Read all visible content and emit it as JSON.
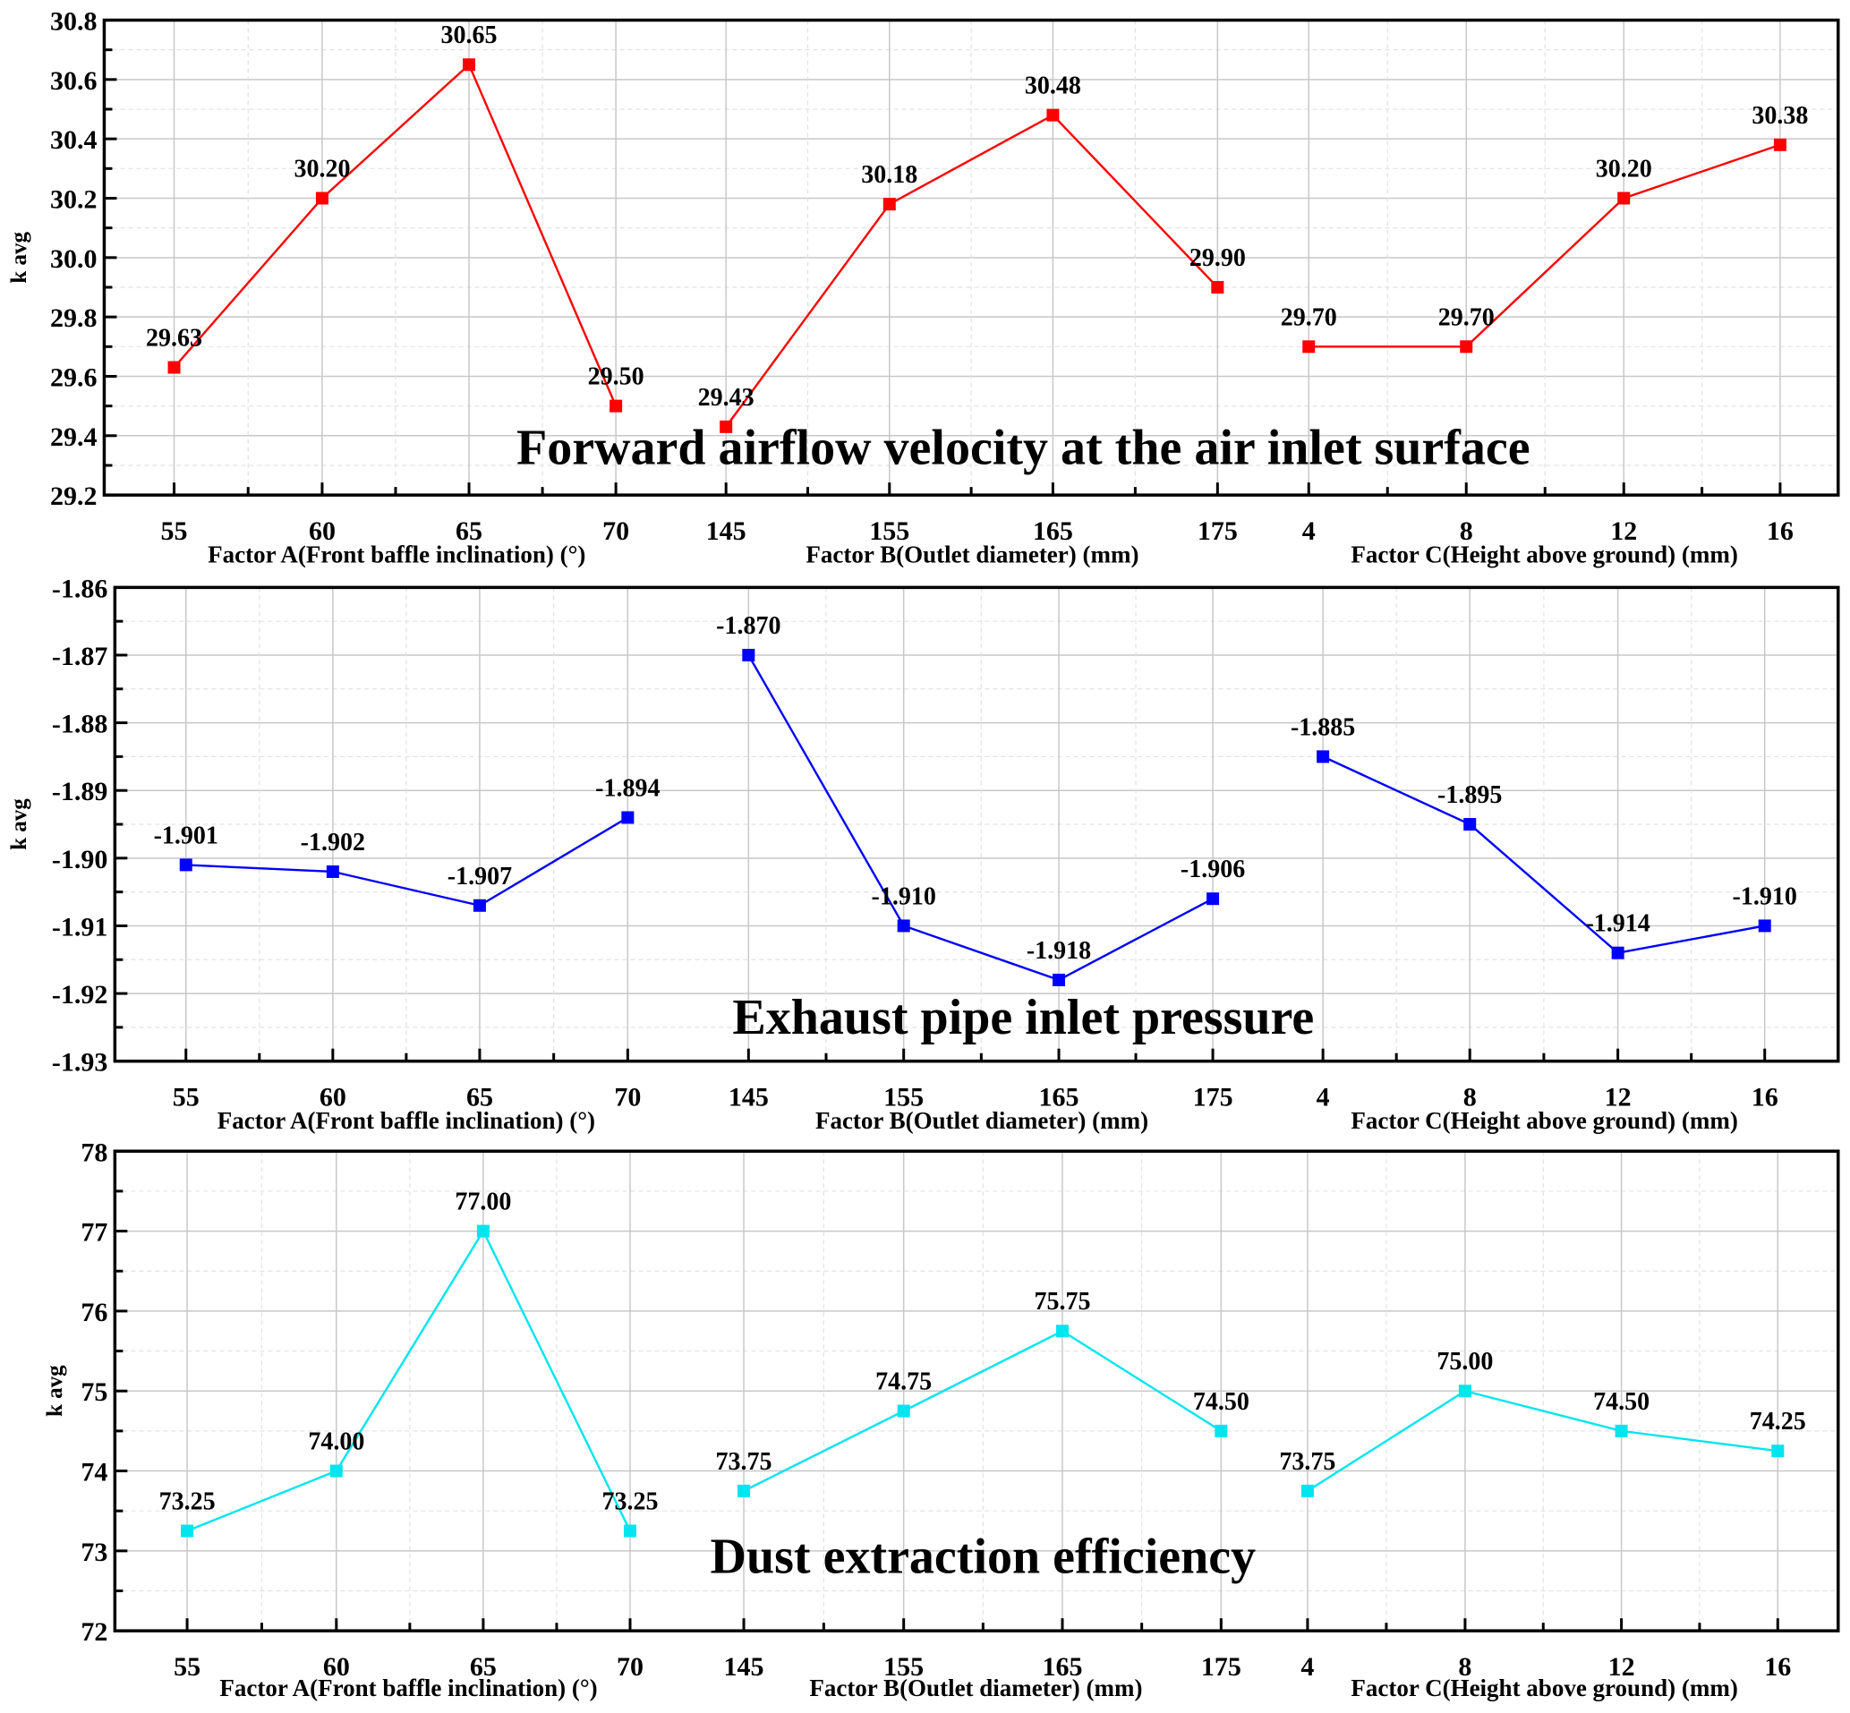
{
  "chart_data": [
    {
      "type": "line",
      "title": "Forward airflow velocity at the air inlet surface",
      "ylabel": "k avg",
      "ylim": [
        29.2,
        30.8
      ],
      "yticks": [
        "29.2",
        "29.4",
        "29.6",
        "29.8",
        "30.0",
        "30.2",
        "30.4",
        "30.6",
        "30.8"
      ],
      "color": "#ff0000",
      "grid": true,
      "groups": [
        {
          "xlabel": "Factor A(Front baffle inclination) (°)",
          "categories": [
            "55",
            "60",
            "65",
            "70"
          ],
          "values": [
            29.63,
            30.2,
            30.65,
            29.5
          ],
          "labels": [
            "29.63",
            "30.20",
            "30.65",
            "29.50"
          ]
        },
        {
          "xlabel": "Factor B(Outlet diameter) (mm)",
          "categories": [
            "145",
            "155",
            "165",
            "175"
          ],
          "values": [
            29.43,
            30.18,
            30.48,
            29.9
          ],
          "labels": [
            "29.43",
            "30.18",
            "30.48",
            "29.90"
          ]
        },
        {
          "xlabel": "Factor C(Height above ground) (mm)",
          "categories": [
            "4",
            "8",
            "12",
            "16"
          ],
          "values": [
            29.7,
            29.7,
            30.2,
            30.38
          ],
          "labels": [
            "29.70",
            "29.70",
            "30.20",
            "30.38"
          ]
        }
      ]
    },
    {
      "type": "line",
      "title": "Exhaust pipe inlet pressure",
      "ylabel": "k avg",
      "ylim": [
        -1.93,
        -1.86
      ],
      "yticks": [
        "-1.93",
        "-1.92",
        "-1.91",
        "-1.90",
        "-1.89",
        "-1.88",
        "-1.87",
        "-1.86"
      ],
      "color": "#0000ff",
      "grid": true,
      "groups": [
        {
          "xlabel": "Factor A(Front baffle inclination) (°)",
          "categories": [
            "55",
            "60",
            "65",
            "70"
          ],
          "values": [
            -1.901,
            -1.902,
            -1.907,
            -1.894
          ],
          "labels": [
            "-1.901",
            "-1.902",
            "-1.907",
            "-1.894"
          ]
        },
        {
          "xlabel": "Factor B(Outlet diameter) (mm)",
          "categories": [
            "145",
            "155",
            "165",
            "175"
          ],
          "values": [
            -1.87,
            -1.91,
            -1.918,
            -1.906
          ],
          "labels": [
            "-1.870",
            "-1.910",
            "-1.918",
            "-1.906"
          ]
        },
        {
          "xlabel": "Factor C(Height above ground) (mm)",
          "categories": [
            "4",
            "8",
            "12",
            "16"
          ],
          "values": [
            -1.885,
            -1.895,
            -1.914,
            -1.91
          ],
          "labels": [
            "-1.885",
            "-1.895",
            "-1.914",
            "-1.910"
          ]
        }
      ]
    },
    {
      "type": "line",
      "title": "Dust extraction efficiency",
      "ylabel": "k avg",
      "ylim": [
        72,
        78
      ],
      "yticks": [
        "72",
        "73",
        "74",
        "75",
        "76",
        "77",
        "78"
      ],
      "color": "#00e5ee",
      "grid": true,
      "groups": [
        {
          "xlabel": "Factor A(Front baffle inclination) (°)",
          "categories": [
            "55",
            "60",
            "65",
            "70"
          ],
          "values": [
            73.25,
            74.0,
            77.0,
            73.25
          ],
          "labels": [
            "73.25",
            "74.00",
            "77.00",
            "73.25"
          ]
        },
        {
          "xlabel": "Factor B(Outlet diameter) (mm)",
          "categories": [
            "145",
            "155",
            "165",
            "175"
          ],
          "values": [
            73.75,
            74.75,
            75.75,
            74.5
          ],
          "labels": [
            "73.75",
            "74.75",
            "75.75",
            "74.50"
          ]
        },
        {
          "xlabel": "Factor C(Height above ground) (mm)",
          "categories": [
            "4",
            "8",
            "12",
            "16"
          ],
          "values": [
            73.75,
            75.0,
            74.5,
            74.25
          ],
          "labels": [
            "73.75",
            "75.00",
            "74.50",
            "74.25"
          ]
        }
      ]
    }
  ]
}
